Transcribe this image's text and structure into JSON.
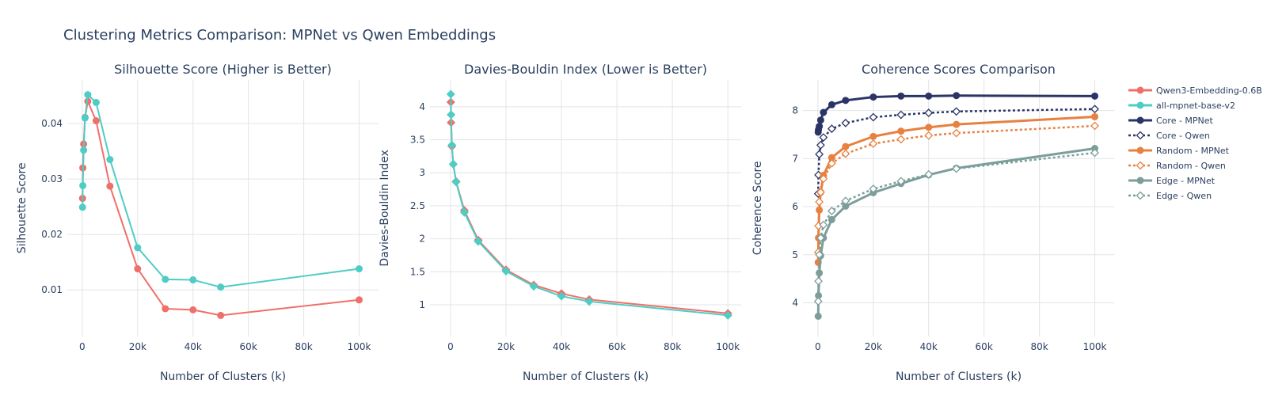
{
  "title": "Clustering Metrics Comparison: MPNet vs Qwen Embeddings",
  "chart_data": [
    {
      "type": "line",
      "title": "Silhouette Score (Higher is Better)",
      "xlabel": "Number of Clusters (k)",
      "ylabel": "Silhouette Score",
      "xlim": [
        -5400,
        107000
      ],
      "ylim": [
        0.0016,
        0.0479
      ],
      "xticks": [
        0,
        20000,
        40000,
        60000,
        80000,
        100000
      ],
      "xtick_labels": [
        "0",
        "20k",
        "40k",
        "60k",
        "80k",
        "100k"
      ],
      "yticks": [
        0.01,
        0.02,
        0.03,
        0.04
      ],
      "ytick_labels": [
        "0.01",
        "0.02",
        "0.03",
        "0.04"
      ],
      "grid": true,
      "x": [
        100,
        200,
        500,
        1000,
        2000,
        5000,
        10000,
        20000,
        30000,
        40000,
        50000,
        100000
      ],
      "series": [
        {
          "name": "Qwen3-Embedding-0.6B",
          "color": "#EF6F6A",
          "marker": "circle",
          "dash": "solid",
          "values": [
            0.0265,
            0.032,
            0.0363,
            0.0411,
            0.044,
            0.0405,
            0.0287,
            0.0138,
            0.0066,
            0.0064,
            0.0054,
            0.0082
          ]
        },
        {
          "name": "all-mpnet-base-v2",
          "color": "#4ECDC4",
          "marker": "circle",
          "dash": "solid",
          "values": [
            0.0249,
            0.0288,
            0.0352,
            0.041,
            0.0452,
            0.0438,
            0.0335,
            0.0176,
            0.0119,
            0.0118,
            0.0105,
            0.0138
          ]
        }
      ]
    },
    {
      "type": "line",
      "title": "Davies-Bouldin Index (Lower is Better)",
      "xlabel": "Number of Clusters (k)",
      "ylabel": "Davies-Bouldin Index",
      "xlim": [
        -7400,
        104800
      ],
      "ylim": [
        0.52,
        4.41
      ],
      "xticks": [
        0,
        20000,
        40000,
        60000,
        80000,
        100000
      ],
      "xtick_labels": [
        "0",
        "20k",
        "40k",
        "60k",
        "80k",
        "100k"
      ],
      "yticks": [
        1,
        1.5,
        2,
        2.5,
        3,
        3.5,
        4
      ],
      "ytick_labels": [
        "1",
        "1.5",
        "2",
        "2.5",
        "3",
        "3.5",
        "4"
      ],
      "grid": true,
      "x": [
        100,
        200,
        500,
        1000,
        2000,
        5000,
        10000,
        20000,
        30000,
        40000,
        50000,
        100000
      ],
      "series": [
        {
          "name": "Qwen3-Embedding-0.6B",
          "color": "#EF6F6A",
          "marker": "diamond",
          "dash": "solid",
          "values": [
            4.07,
            3.76,
            3.4,
            3.13,
            2.87,
            2.43,
            1.98,
            1.53,
            1.3,
            1.17,
            1.08,
            0.87
          ]
        },
        {
          "name": "all-mpnet-base-v2",
          "color": "#4ECDC4",
          "marker": "diamond",
          "dash": "solid",
          "values": [
            4.19,
            3.88,
            3.42,
            3.13,
            2.86,
            2.4,
            1.96,
            1.51,
            1.28,
            1.13,
            1.05,
            0.84
          ]
        }
      ]
    },
    {
      "type": "line",
      "title": "Coherence Scores Comparison",
      "xlabel": "Number of Clusters (k)",
      "ylabel": "Coherence Score",
      "xlim": [
        -5400,
        107000
      ],
      "ylim": [
        3.3,
        8.64
      ],
      "xticks": [
        0,
        20000,
        40000,
        60000,
        80000,
        100000
      ],
      "xtick_labels": [
        "0",
        "20k",
        "40k",
        "60k",
        "80k",
        "100k"
      ],
      "yticks": [
        4,
        5,
        6,
        7,
        8
      ],
      "ytick_labels": [
        "4",
        "5",
        "6",
        "7",
        "8"
      ],
      "grid": true,
      "x": [
        100,
        200,
        500,
        1000,
        2000,
        5000,
        10000,
        20000,
        30000,
        40000,
        50000,
        100000
      ],
      "series": [
        {
          "name": "Core - MPNet",
          "color": "#2B3467",
          "marker": "circle",
          "dash": "solid",
          "values": [
            7.55,
            7.6,
            7.67,
            7.8,
            7.96,
            8.12,
            8.21,
            8.28,
            8.3,
            8.3,
            8.31,
            8.3
          ]
        },
        {
          "name": "Core - Qwen",
          "color": "#2B3467",
          "marker": "diamond-open",
          "dash": "dot",
          "values": [
            6.27,
            6.66,
            7.09,
            7.28,
            7.44,
            7.62,
            7.74,
            7.86,
            7.91,
            7.95,
            7.98,
            8.03
          ]
        },
        {
          "name": "Random - MPNet",
          "color": "#E8803F",
          "marker": "circle",
          "dash": "solid",
          "values": [
            4.84,
            5.35,
            5.93,
            6.3,
            6.65,
            7.02,
            7.25,
            7.46,
            7.57,
            7.65,
            7.71,
            7.87
          ]
        },
        {
          "name": "Random - Qwen",
          "color": "#E8803F",
          "marker": "diamond-open",
          "dash": "dot",
          "values": [
            5.05,
            5.6,
            6.1,
            6.3,
            6.58,
            6.9,
            7.1,
            7.31,
            7.4,
            7.48,
            7.53,
            7.68
          ]
        },
        {
          "name": "Edge - MPNet",
          "color": "#7C9E9A",
          "marker": "circle",
          "dash": "solid",
          "values": [
            3.72,
            4.15,
            4.62,
            4.98,
            5.35,
            5.73,
            6.01,
            6.29,
            6.48,
            6.66,
            6.8,
            7.21
          ]
        },
        {
          "name": "Edge - Qwen",
          "color": "#7C9E9A",
          "marker": "diamond-open",
          "dash": "dot",
          "values": [
            4.03,
            4.45,
            5.0,
            5.35,
            5.62,
            5.91,
            6.12,
            6.37,
            6.53,
            6.67,
            6.79,
            7.12
          ]
        }
      ]
    }
  ],
  "legend": {
    "placement": "right",
    "items": [
      {
        "name": "Qwen3-Embedding-0.6B",
        "color": "#EF6F6A",
        "marker": "circle",
        "dash": "solid"
      },
      {
        "name": "all-mpnet-base-v2",
        "color": "#4ECDC4",
        "marker": "circle",
        "dash": "solid"
      },
      {
        "name": "Core - MPNet",
        "color": "#2B3467",
        "marker": "circle",
        "dash": "solid"
      },
      {
        "name": "Core - Qwen",
        "color": "#2B3467",
        "marker": "diamond-open",
        "dash": "dot"
      },
      {
        "name": "Random - MPNet",
        "color": "#E8803F",
        "marker": "circle",
        "dash": "solid"
      },
      {
        "name": "Random - Qwen",
        "color": "#E8803F",
        "marker": "diamond-open",
        "dash": "dot"
      },
      {
        "name": "Edge - MPNet",
        "color": "#7C9E9A",
        "marker": "circle",
        "dash": "solid"
      },
      {
        "name": "Edge - Qwen",
        "color": "#7C9E9A",
        "marker": "diamond-open",
        "dash": "dot"
      }
    ]
  }
}
